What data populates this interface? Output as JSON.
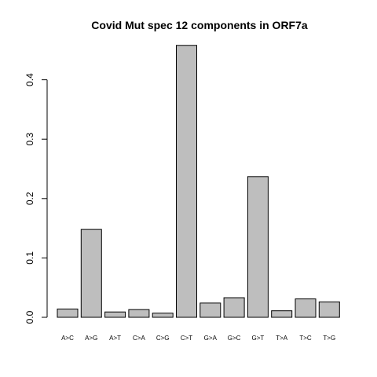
{
  "chart_data": {
    "type": "bar",
    "title": "Covid Mut spec 12 components in ORF7a",
    "xlabel": "",
    "ylabel": "",
    "categories": [
      "A>C",
      "A>G",
      "A>T",
      "C>A",
      "C>G",
      "C>T",
      "G>A",
      "G>C",
      "G>T",
      "T>A",
      "T>C",
      "T>G"
    ],
    "values": [
      0.014,
      0.148,
      0.009,
      0.013,
      0.007,
      0.458,
      0.024,
      0.033,
      0.237,
      0.011,
      0.031,
      0.026
    ],
    "yticks": [
      "0.0",
      "0.1",
      "0.2",
      "0.3",
      "0.4"
    ],
    "ylim": [
      0,
      0.458
    ],
    "bar_color": "#bebebe",
    "bar_border_color": "#000000",
    "grid": false,
    "legend": "none"
  }
}
